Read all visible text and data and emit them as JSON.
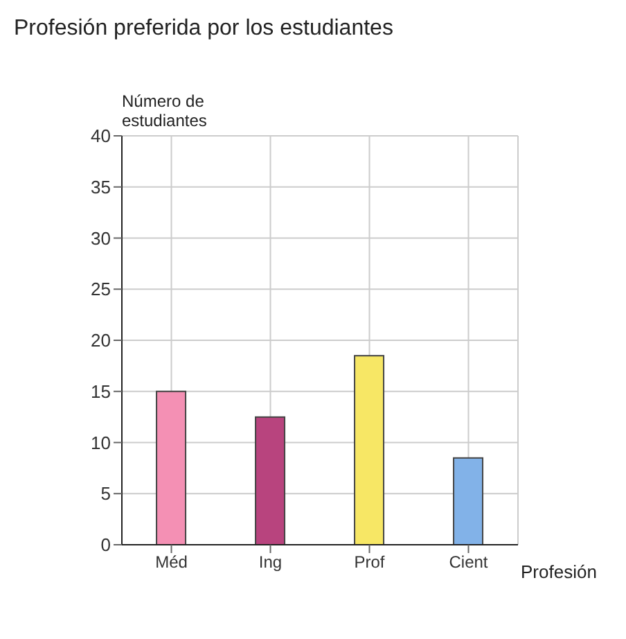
{
  "chart_data": {
    "type": "bar",
    "title": "Profesión preferida por los estudiantes",
    "xlabel": "Profesión",
    "ylabel": "Número de estudiantes",
    "categories": [
      "Méd",
      "Ing",
      "Prof",
      "Cient"
    ],
    "values": [
      15,
      12.5,
      18.5,
      8.5
    ],
    "colors": [
      "#f490b4",
      "#b8447e",
      "#f7e765",
      "#82b2e8"
    ],
    "ylim": [
      0,
      40
    ],
    "yticks": [
      0,
      5,
      10,
      15,
      20,
      25,
      30,
      35,
      40
    ],
    "grid": true
  }
}
